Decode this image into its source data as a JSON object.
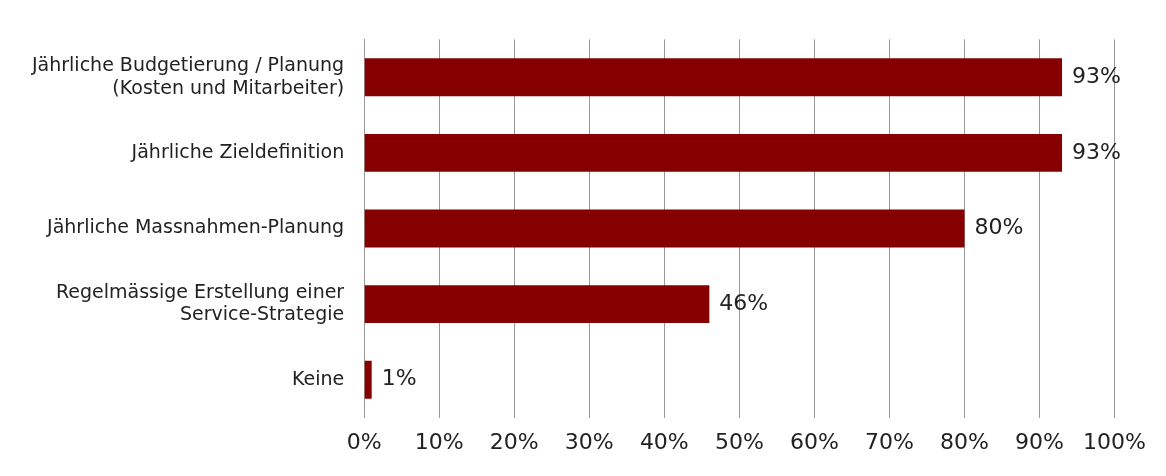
{
  "chart_data": {
    "type": "bar",
    "orientation": "horizontal",
    "categories": [
      "Jährliche Budgetierung / Planung\n(Kosten und Mitarbeiter)",
      "Jährliche Zieldefinition",
      "Jährliche Massnahmen-Planung",
      "Regelmässige Erstellung einer\nService-Strategie",
      "Keine"
    ],
    "values": [
      93,
      93,
      80,
      46,
      1
    ],
    "value_labels": [
      "93%",
      "93%",
      "80%",
      "46%",
      "1%"
    ],
    "color": "#860000",
    "xlim": [
      0,
      100
    ],
    "xticks": [
      {
        "value": 0,
        "label": "0%"
      },
      {
        "value": 10,
        "label": "10%"
      },
      {
        "value": 20,
        "label": "20%"
      },
      {
        "value": 30,
        "label": "30%"
      },
      {
        "value": 40,
        "label": "40%"
      },
      {
        "value": 50,
        "label": "50%"
      },
      {
        "value": 60,
        "label": "60%"
      },
      {
        "value": 70,
        "label": "70%"
      },
      {
        "value": 80,
        "label": "80%"
      },
      {
        "value": 90,
        "label": "90%"
      },
      {
        "value": 100,
        "label": "100%"
      }
    ],
    "grid": "x",
    "legend": false
  }
}
